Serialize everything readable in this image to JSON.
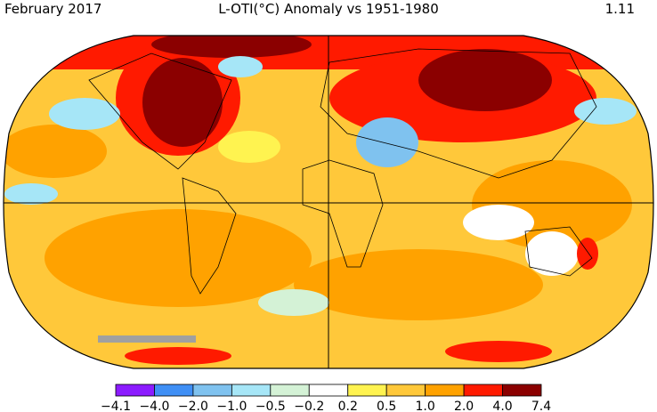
{
  "header": {
    "left": "February 2017",
    "title": "L-OTI(°C) Anomaly vs 1951-1980",
    "right": "1.11"
  },
  "legend": {
    "labels": [
      "−4.1",
      "−4.0",
      "−2.0",
      "−1.0",
      "−0.5",
      "−0.2",
      "0.2",
      "0.5",
      "1.0",
      "2.0",
      "4.0",
      "7.4"
    ],
    "colors": [
      "#8c1cff",
      "#3f8ff5",
      "#7fc2ef",
      "#a6e6f7",
      "#d4f2d6",
      "#ffffff",
      "#fff350",
      "#ffc83a",
      "#ffa200",
      "#ff1a00",
      "#8b0000"
    ]
  }
}
